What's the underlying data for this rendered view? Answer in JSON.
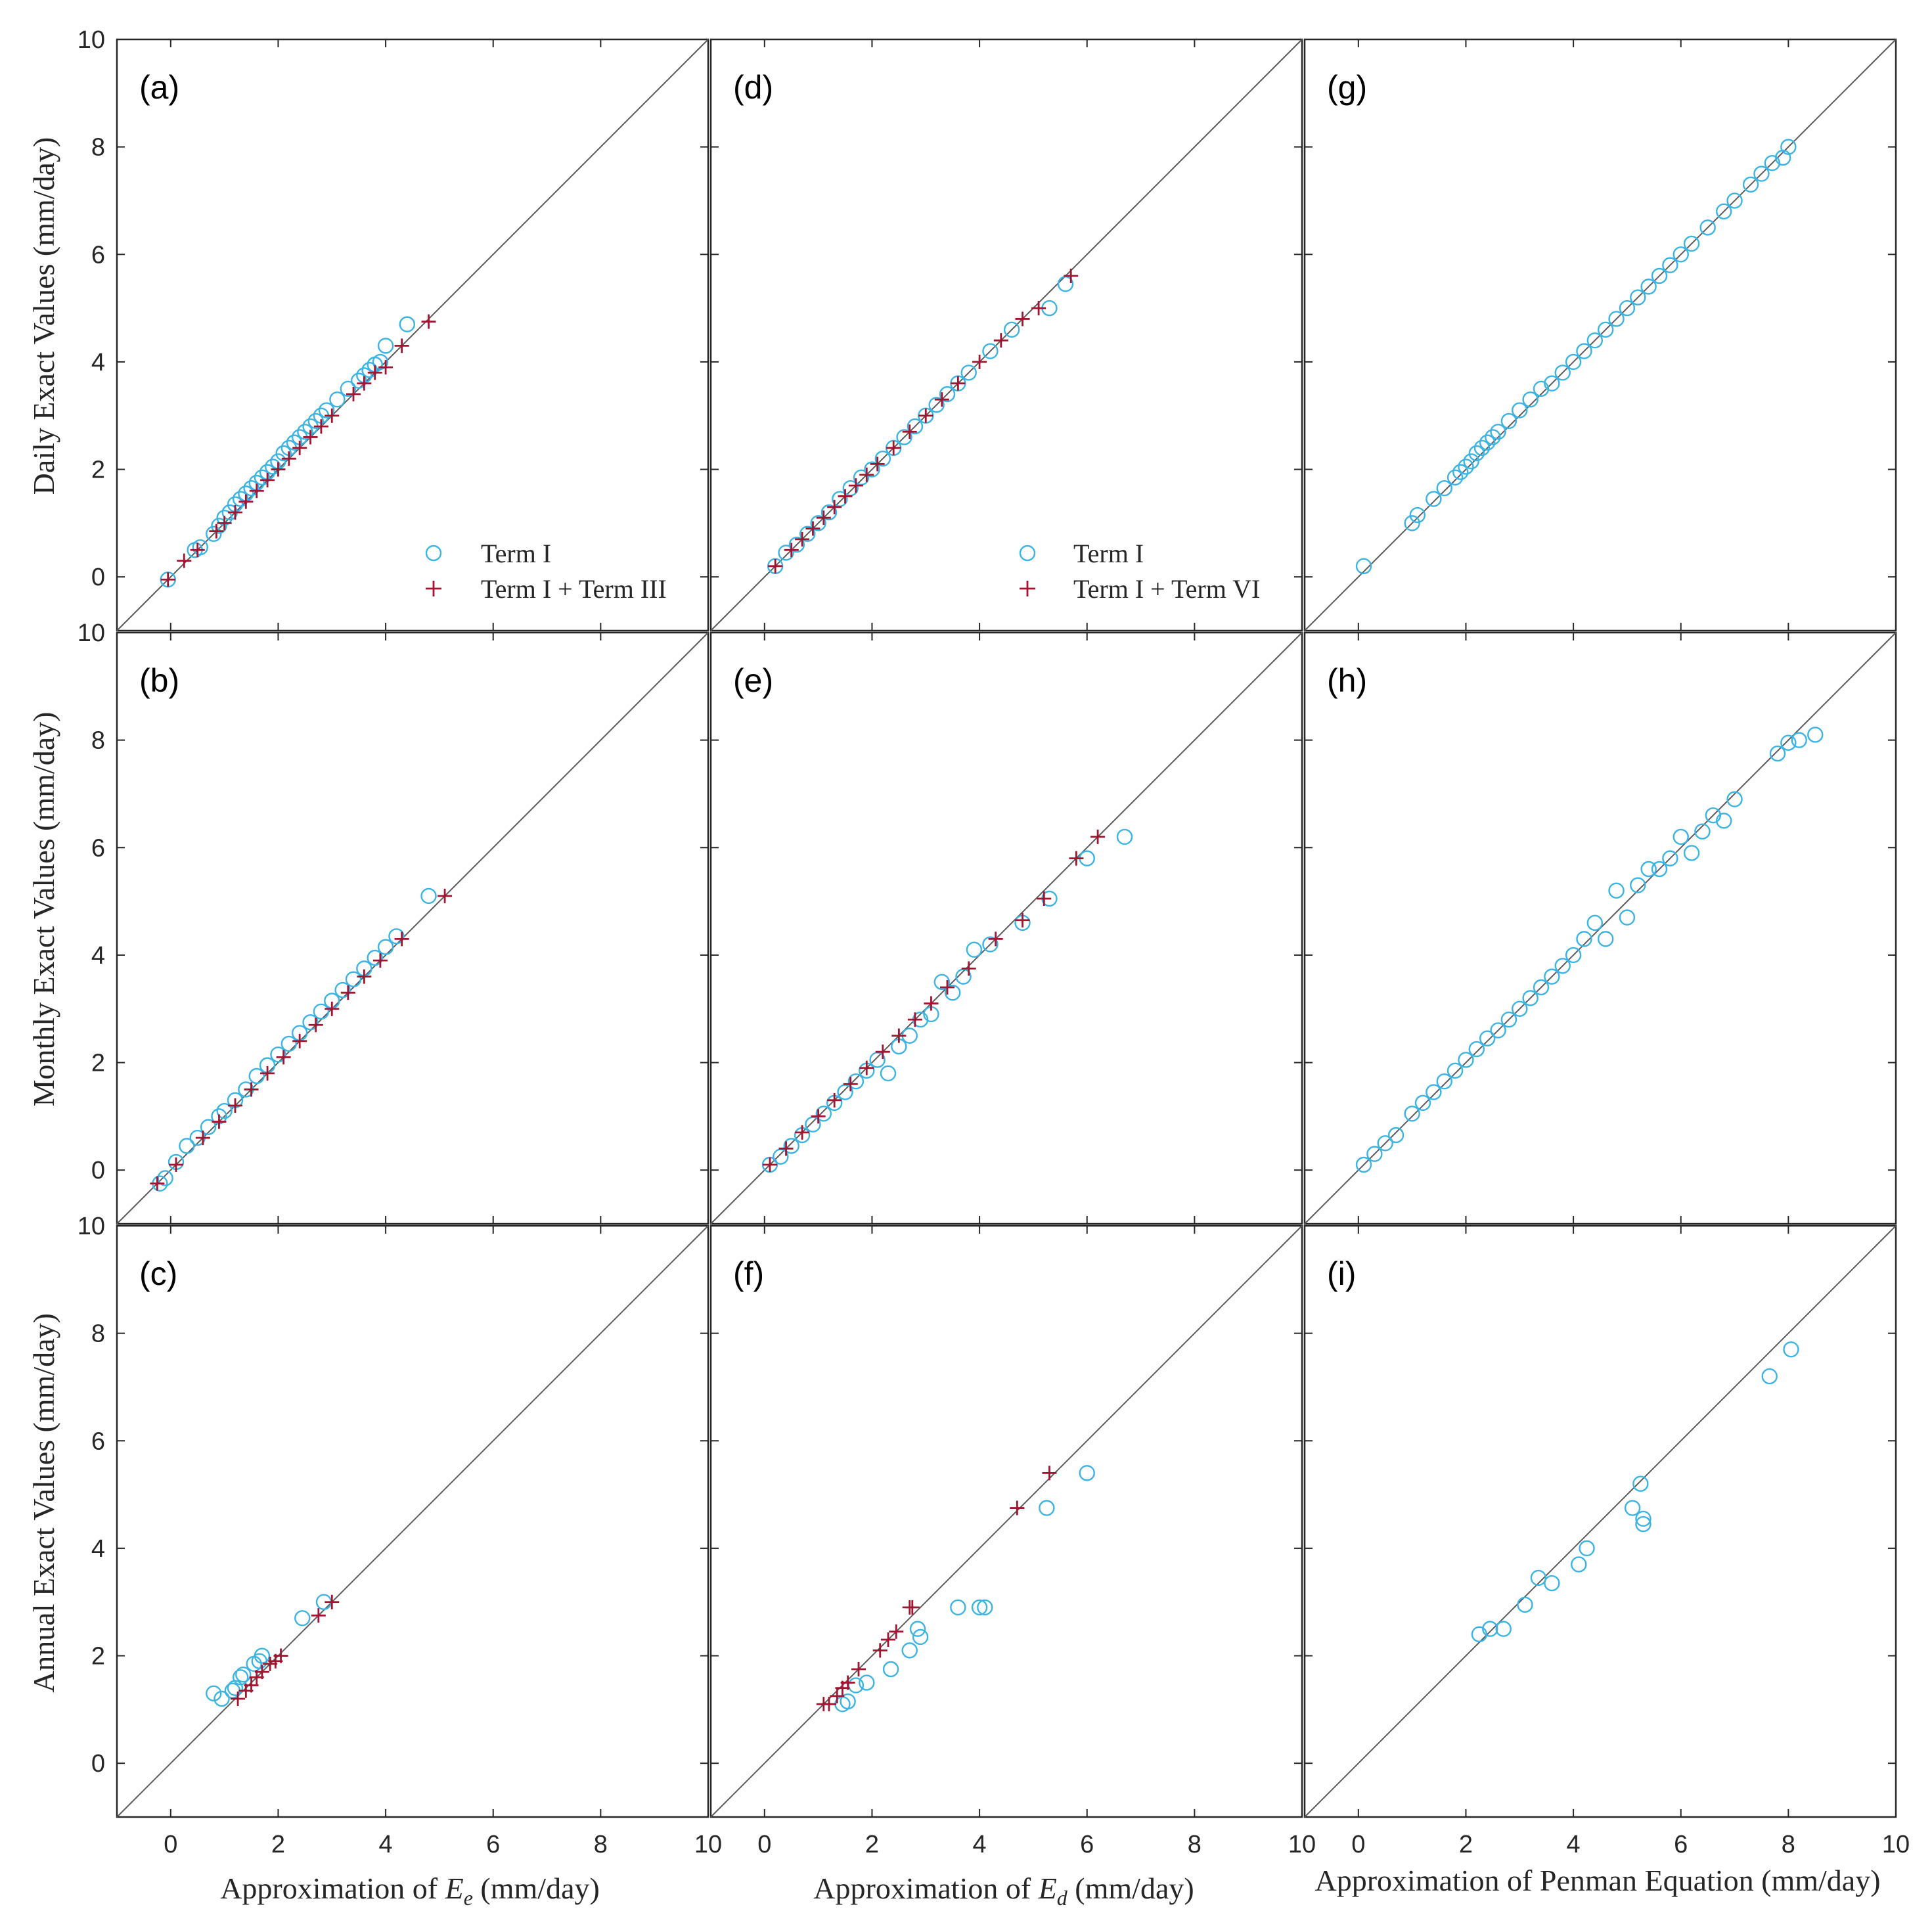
{
  "figure": {
    "colors": {
      "term1": "#3BB4E4",
      "term_plus": "#A2142F",
      "axis": "#262626",
      "diagonal": "#5a5a5a"
    },
    "axis_range": [
      -1,
      10
    ],
    "ticks": [
      "0",
      "2",
      "4",
      "6",
      "8",
      "10"
    ],
    "row_ylabels": [
      "Daily Exact Values (mm/day)",
      "Monthly Exact Values (mm/day)",
      "Annual Exact Values (mm/day)"
    ],
    "col_xlabels": [
      {
        "pre": "Approximation of ",
        "var": "E",
        "sub": "e",
        "post": " (mm/day)"
      },
      {
        "pre": "Approximation of ",
        "var": "E",
        "sub": "d",
        "post": " (mm/day)"
      },
      {
        "pre": "Approximation of Penman Equation (mm/day)",
        "var": "",
        "sub": "",
        "post": ""
      }
    ],
    "legends": [
      {
        "panel": "a",
        "items": [
          "Term I",
          "Term I + Term III"
        ]
      },
      {
        "panel": "d",
        "items": [
          "Term I",
          "Term I + Term VI"
        ]
      }
    ]
  },
  "chart_data": [
    {
      "panel": "(a)",
      "type": "scatter",
      "xlabel": "Approximation of Ee (mm/day)",
      "ylabel": "Daily Exact Values (mm/day)",
      "xlim": [
        -1,
        10
      ],
      "ylim": [
        -1,
        10
      ],
      "reference_line": "y = x",
      "series": [
        {
          "name": "Term I",
          "marker": "circle",
          "x": [
            -0.05,
            0.45,
            0.55,
            0.8,
            0.9,
            1.0,
            1.1,
            1.2,
            1.3,
            1.4,
            1.5,
            1.6,
            1.7,
            1.8,
            1.9,
            2.0,
            2.1,
            2.2,
            2.3,
            2.4,
            2.5,
            2.6,
            2.7,
            2.8,
            2.9,
            3.1,
            3.3,
            3.5,
            3.6,
            3.7,
            3.8,
            3.9,
            4.0,
            4.4
          ],
          "y": [
            -0.05,
            0.5,
            0.55,
            0.8,
            0.95,
            1.1,
            1.2,
            1.35,
            1.45,
            1.55,
            1.65,
            1.75,
            1.85,
            1.95,
            2.05,
            2.15,
            2.3,
            2.4,
            2.5,
            2.6,
            2.7,
            2.8,
            2.9,
            3.0,
            3.1,
            3.3,
            3.5,
            3.65,
            3.75,
            3.85,
            3.95,
            4.0,
            4.3,
            4.7
          ]
        },
        {
          "name": "Term I + Term III",
          "marker": "plus",
          "x": [
            -0.05,
            0.25,
            0.5,
            0.85,
            1.0,
            1.2,
            1.4,
            1.6,
            1.8,
            2.0,
            2.2,
            2.4,
            2.6,
            2.8,
            3.0,
            3.4,
            3.6,
            3.8,
            4.0,
            4.3,
            4.8
          ],
          "y": [
            -0.05,
            0.3,
            0.5,
            0.85,
            1.0,
            1.2,
            1.4,
            1.6,
            1.8,
            2.0,
            2.2,
            2.4,
            2.6,
            2.8,
            3.0,
            3.4,
            3.6,
            3.8,
            3.9,
            4.3,
            4.75
          ]
        }
      ]
    },
    {
      "panel": "(b)",
      "type": "scatter",
      "xlabel": "Approximation of Ee (mm/day)",
      "ylabel": "Monthly Exact Values (mm/day)",
      "xlim": [
        -1,
        10
      ],
      "ylim": [
        -1,
        10
      ],
      "reference_line": "y = x",
      "series": [
        {
          "name": "Term I",
          "marker": "circle",
          "x": [
            -0.2,
            -0.1,
            0.1,
            0.3,
            0.5,
            0.7,
            0.9,
            1.0,
            1.2,
            1.4,
            1.6,
            1.8,
            2.0,
            2.2,
            2.4,
            2.6,
            2.8,
            3.0,
            3.2,
            3.4,
            3.6,
            3.8,
            4.0,
            4.2,
            4.8
          ],
          "y": [
            -0.25,
            -0.15,
            0.15,
            0.45,
            0.6,
            0.8,
            1.0,
            1.1,
            1.3,
            1.5,
            1.75,
            1.95,
            2.15,
            2.35,
            2.55,
            2.75,
            2.95,
            3.15,
            3.35,
            3.55,
            3.75,
            3.95,
            4.15,
            4.35,
            5.1
          ]
        },
        {
          "name": "Term I + Term III",
          "marker": "plus",
          "x": [
            -0.25,
            0.1,
            0.6,
            0.9,
            1.2,
            1.5,
            1.8,
            2.1,
            2.4,
            2.7,
            3.0,
            3.3,
            3.6,
            3.9,
            4.3,
            5.1
          ],
          "y": [
            -0.25,
            0.1,
            0.6,
            0.9,
            1.2,
            1.5,
            1.8,
            2.1,
            2.4,
            2.7,
            3.0,
            3.3,
            3.6,
            3.9,
            4.3,
            5.1
          ]
        }
      ]
    },
    {
      "panel": "(c)",
      "type": "scatter",
      "xlabel": "Approximation of Ee (mm/day)",
      "ylabel": "Annual Exact Values (mm/day)",
      "xlim": [
        -1,
        10
      ],
      "ylim": [
        -1,
        10
      ],
      "reference_line": "y = x",
      "series": [
        {
          "name": "Term I",
          "marker": "circle",
          "x": [
            0.8,
            0.95,
            1.15,
            1.2,
            1.3,
            1.35,
            1.55,
            1.65,
            1.7,
            2.45,
            2.85
          ],
          "y": [
            1.3,
            1.2,
            1.35,
            1.4,
            1.6,
            1.65,
            1.85,
            1.9,
            2.0,
            2.7,
            3.0
          ]
        },
        {
          "name": "Term I + Term III",
          "marker": "plus",
          "x": [
            1.25,
            1.4,
            1.5,
            1.6,
            1.7,
            1.85,
            1.95,
            2.05,
            2.75,
            3.0
          ],
          "y": [
            1.2,
            1.35,
            1.45,
            1.6,
            1.7,
            1.85,
            1.9,
            2.0,
            2.75,
            3.0
          ]
        }
      ]
    },
    {
      "panel": "(d)",
      "type": "scatter",
      "xlabel": "Approximation of Ed (mm/day)",
      "ylabel": "Daily Exact Values (mm/day)",
      "xlim": [
        -1,
        10
      ],
      "ylim": [
        -1,
        10
      ],
      "reference_line": "y = x",
      "series": [
        {
          "name": "Term I",
          "marker": "circle",
          "x": [
            0.2,
            0.4,
            0.6,
            0.8,
            1.0,
            1.2,
            1.4,
            1.6,
            1.8,
            2.0,
            2.2,
            2.4,
            2.6,
            2.8,
            3.0,
            3.2,
            3.4,
            3.6,
            3.8,
            4.2,
            4.6,
            5.3,
            5.6
          ],
          "y": [
            0.2,
            0.45,
            0.6,
            0.8,
            1.0,
            1.2,
            1.45,
            1.65,
            1.85,
            2.0,
            2.2,
            2.4,
            2.6,
            2.8,
            3.0,
            3.2,
            3.4,
            3.6,
            3.8,
            4.2,
            4.6,
            5.0,
            5.45
          ]
        },
        {
          "name": "Term I + Term VI",
          "marker": "plus",
          "x": [
            0.2,
            0.5,
            0.7,
            0.9,
            1.1,
            1.3,
            1.5,
            1.7,
            1.9,
            2.1,
            2.4,
            2.7,
            3.0,
            3.3,
            3.6,
            4.0,
            4.4,
            4.8,
            5.1,
            5.7
          ],
          "y": [
            0.2,
            0.5,
            0.7,
            0.9,
            1.1,
            1.3,
            1.5,
            1.7,
            1.9,
            2.1,
            2.4,
            2.7,
            3.0,
            3.3,
            3.6,
            4.0,
            4.4,
            4.8,
            5.0,
            5.6
          ]
        }
      ]
    },
    {
      "panel": "(e)",
      "type": "scatter",
      "xlabel": "Approximation of Ed (mm/day)",
      "ylabel": "Monthly Exact Values (mm/day)",
      "xlim": [
        -1,
        10
      ],
      "ylim": [
        -1,
        10
      ],
      "reference_line": "y = x",
      "series": [
        {
          "name": "Term I",
          "marker": "circle",
          "x": [
            0.1,
            0.3,
            0.5,
            0.7,
            0.9,
            1.1,
            1.3,
            1.5,
            1.7,
            1.9,
            2.1,
            2.3,
            2.5,
            2.7,
            2.9,
            3.1,
            3.3,
            3.5,
            3.7,
            3.9,
            4.2,
            4.8,
            5.3,
            6.0,
            6.7
          ],
          "y": [
            0.1,
            0.25,
            0.45,
            0.65,
            0.85,
            1.05,
            1.25,
            1.45,
            1.65,
            1.85,
            2.05,
            1.8,
            2.3,
            2.5,
            2.8,
            2.9,
            3.5,
            3.3,
            3.6,
            4.1,
            4.2,
            4.6,
            5.05,
            5.8,
            6.2
          ]
        },
        {
          "name": "Term I + Term VI",
          "marker": "plus",
          "x": [
            0.1,
            0.4,
            0.7,
            1.0,
            1.3,
            1.6,
            1.9,
            2.2,
            2.5,
            2.8,
            3.1,
            3.4,
            3.8,
            4.3,
            4.8,
            5.2,
            5.8,
            6.2
          ],
          "y": [
            0.1,
            0.4,
            0.7,
            1.0,
            1.3,
            1.6,
            1.9,
            2.2,
            2.5,
            2.8,
            3.1,
            3.4,
            3.75,
            4.3,
            4.65,
            5.05,
            5.8,
            6.2
          ]
        }
      ]
    },
    {
      "panel": "(f)",
      "type": "scatter",
      "xlabel": "Approximation of Ed (mm/day)",
      "ylabel": "Annual Exact Values (mm/day)",
      "xlim": [
        -1,
        10
      ],
      "ylim": [
        -1,
        10
      ],
      "reference_line": "y = x",
      "series": [
        {
          "name": "Term I",
          "marker": "circle",
          "x": [
            1.45,
            1.55,
            1.7,
            1.9,
            2.35,
            2.7,
            2.85,
            2.9,
            3.6,
            4.0,
            4.1,
            5.25,
            6.0
          ],
          "y": [
            1.1,
            1.15,
            1.45,
            1.5,
            1.75,
            2.1,
            2.5,
            2.35,
            2.9,
            2.9,
            2.9,
            4.75,
            5.4
          ]
        },
        {
          "name": "Term I + Term VI",
          "marker": "plus",
          "x": [
            1.1,
            1.2,
            1.35,
            1.45,
            1.55,
            1.75,
            2.15,
            2.3,
            2.45,
            2.7,
            2.75,
            4.7,
            5.3
          ],
          "y": [
            1.1,
            1.1,
            1.25,
            1.4,
            1.5,
            1.75,
            2.1,
            2.3,
            2.45,
            2.9,
            2.9,
            4.75,
            5.4
          ]
        }
      ]
    },
    {
      "panel": "(g)",
      "type": "scatter",
      "xlabel": "Approximation of Penman Equation (mm/day)",
      "ylabel": "Daily Exact Values (mm/day)",
      "xlim": [
        -1,
        10
      ],
      "ylim": [
        -1,
        10
      ],
      "reference_line": "y = x",
      "series": [
        {
          "name": "Term I",
          "marker": "circle",
          "x": [
            0.1,
            1.0,
            1.1,
            1.4,
            1.6,
            1.8,
            1.9,
            2.0,
            2.1,
            2.2,
            2.3,
            2.4,
            2.5,
            2.6,
            2.8,
            3.0,
            3.2,
            3.4,
            3.6,
            3.8,
            4.0,
            4.2,
            4.4,
            4.6,
            4.8,
            5.0,
            5.2,
            5.4,
            5.6,
            5.8,
            6.0,
            6.2,
            6.5,
            6.8,
            7.0,
            7.3,
            7.5,
            7.7,
            7.9,
            8.0
          ],
          "y": [
            0.2,
            1.0,
            1.15,
            1.45,
            1.65,
            1.85,
            1.95,
            2.05,
            2.15,
            2.3,
            2.4,
            2.5,
            2.6,
            2.7,
            2.9,
            3.1,
            3.3,
            3.5,
            3.6,
            3.8,
            4.0,
            4.2,
            4.4,
            4.6,
            4.8,
            5.0,
            5.2,
            5.4,
            5.6,
            5.8,
            6.0,
            6.2,
            6.5,
            6.8,
            7.0,
            7.3,
            7.5,
            7.7,
            7.8,
            8.0
          ]
        }
      ]
    },
    {
      "panel": "(h)",
      "type": "scatter",
      "xlabel": "Approximation of Penman Equation (mm/day)",
      "ylabel": "Monthly Exact Values (mm/day)",
      "xlim": [
        -1,
        10
      ],
      "ylim": [
        -1,
        10
      ],
      "reference_line": "y = x",
      "series": [
        {
          "name": "Term I",
          "marker": "circle",
          "x": [
            0.1,
            0.3,
            0.5,
            0.7,
            1.0,
            1.2,
            1.4,
            1.6,
            1.8,
            2.0,
            2.2,
            2.4,
            2.6,
            2.8,
            3.0,
            3.2,
            3.4,
            3.6,
            3.8,
            4.0,
            4.2,
            4.4,
            4.6,
            4.8,
            5.0,
            5.2,
            5.4,
            5.6,
            5.8,
            6.0,
            6.2,
            6.4,
            6.6,
            6.8,
            7.0,
            7.8,
            8.0,
            8.2,
            8.5
          ],
          "y": [
            0.1,
            0.3,
            0.5,
            0.65,
            1.05,
            1.25,
            1.45,
            1.65,
            1.85,
            2.05,
            2.25,
            2.45,
            2.6,
            2.8,
            3.0,
            3.2,
            3.4,
            3.6,
            3.8,
            4.0,
            4.3,
            4.6,
            4.3,
            5.2,
            4.7,
            5.3,
            5.6,
            5.6,
            5.8,
            6.2,
            5.9,
            6.3,
            6.6,
            6.5,
            6.9,
            7.75,
            7.95,
            8.0,
            8.1
          ]
        }
      ]
    },
    {
      "panel": "(i)",
      "type": "scatter",
      "xlabel": "Approximation of Penman Equation (mm/day)",
      "ylabel": "Annual Exact Values (mm/day)",
      "xlim": [
        -1,
        10
      ],
      "ylim": [
        -1,
        10
      ],
      "reference_line": "y = x",
      "series": [
        {
          "name": "Term I",
          "marker": "circle",
          "x": [
            2.25,
            2.45,
            2.7,
            3.1,
            3.35,
            3.6,
            4.1,
            4.25,
            5.1,
            5.25,
            5.3,
            5.3,
            7.65,
            8.05
          ],
          "y": [
            2.4,
            2.5,
            2.5,
            2.95,
            3.45,
            3.35,
            3.7,
            4.0,
            4.75,
            5.2,
            4.55,
            4.45,
            7.2,
            7.7
          ]
        }
      ]
    }
  ]
}
